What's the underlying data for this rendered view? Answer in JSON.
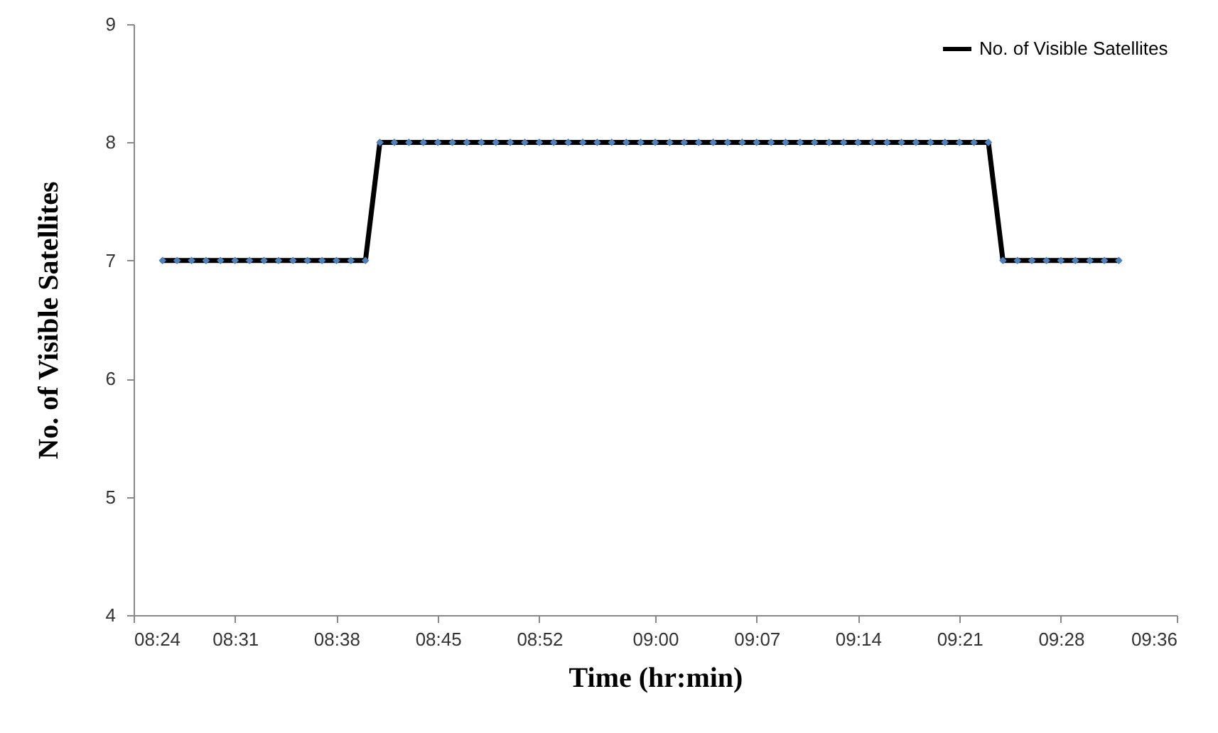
{
  "chart_data": {
    "type": "line",
    "xlabel": "Time (hr:min)",
    "ylabel": "No. of Visible Satellites",
    "x": [
      8.4333,
      8.45,
      8.4667,
      8.4833,
      8.5,
      8.5167,
      8.5333,
      8.55,
      8.5667,
      8.5833,
      8.6,
      8.6167,
      8.6333,
      8.65,
      8.6667,
      8.6833,
      8.7,
      8.7167,
      8.7333,
      8.75,
      8.7667,
      8.7833,
      8.8,
      8.8167,
      8.8333,
      8.85,
      8.8667,
      8.8833,
      8.9,
      8.9167,
      8.9333,
      8.95,
      8.9667,
      8.9833,
      9.0,
      9.0167,
      9.0333,
      9.05,
      9.0667,
      9.0833,
      9.1,
      9.1167,
      9.1333,
      9.15,
      9.1667,
      9.1833,
      9.2,
      9.2167,
      9.2333,
      9.25,
      9.2667,
      9.2833,
      9.3,
      9.3167,
      9.3333,
      9.35,
      9.3667,
      9.3833,
      9.4,
      9.4167,
      9.4333,
      9.45,
      9.4667,
      9.4833,
      9.5,
      9.5167,
      9.5333
    ],
    "series": [
      {
        "name": "No. of Visible Satellites",
        "color": "#000000",
        "values": [
          7,
          7,
          7,
          7,
          7,
          7,
          7,
          7,
          7,
          7,
          7,
          7,
          7,
          7,
          7,
          8,
          8,
          8,
          8,
          8,
          8,
          8,
          8,
          8,
          8,
          8,
          8,
          8,
          8,
          8,
          8,
          8,
          8,
          8,
          8,
          8,
          8,
          8,
          8,
          8,
          8,
          8,
          8,
          8,
          8,
          8,
          8,
          8,
          8,
          8,
          8,
          8,
          8,
          8,
          8,
          8,
          8,
          8,
          7,
          7,
          7,
          7,
          7,
          7,
          7,
          7,
          7
        ]
      }
    ],
    "xlim": [
      8.4,
      9.6
    ],
    "xticks": [
      {
        "value": 8.4,
        "label": "08:24"
      },
      {
        "value": 8.5167,
        "label": "08:31"
      },
      {
        "value": 8.6333,
        "label": "08:38"
      },
      {
        "value": 8.75,
        "label": "08:45"
      },
      {
        "value": 8.8667,
        "label": "08:52"
      },
      {
        "value": 9.0,
        "label": "09:00"
      },
      {
        "value": 9.1167,
        "label": "09:07"
      },
      {
        "value": 9.2333,
        "label": "09:14"
      },
      {
        "value": 9.35,
        "label": "09:21"
      },
      {
        "value": 9.4667,
        "label": "09:28"
      },
      {
        "value": 9.6,
        "label": "09:36"
      }
    ],
    "ylim": [
      4,
      9
    ],
    "yticks": [
      4,
      5,
      6,
      7,
      8,
      9
    ],
    "grid": false,
    "legend": "top right",
    "marker": "diamond",
    "line_style": "solid"
  }
}
